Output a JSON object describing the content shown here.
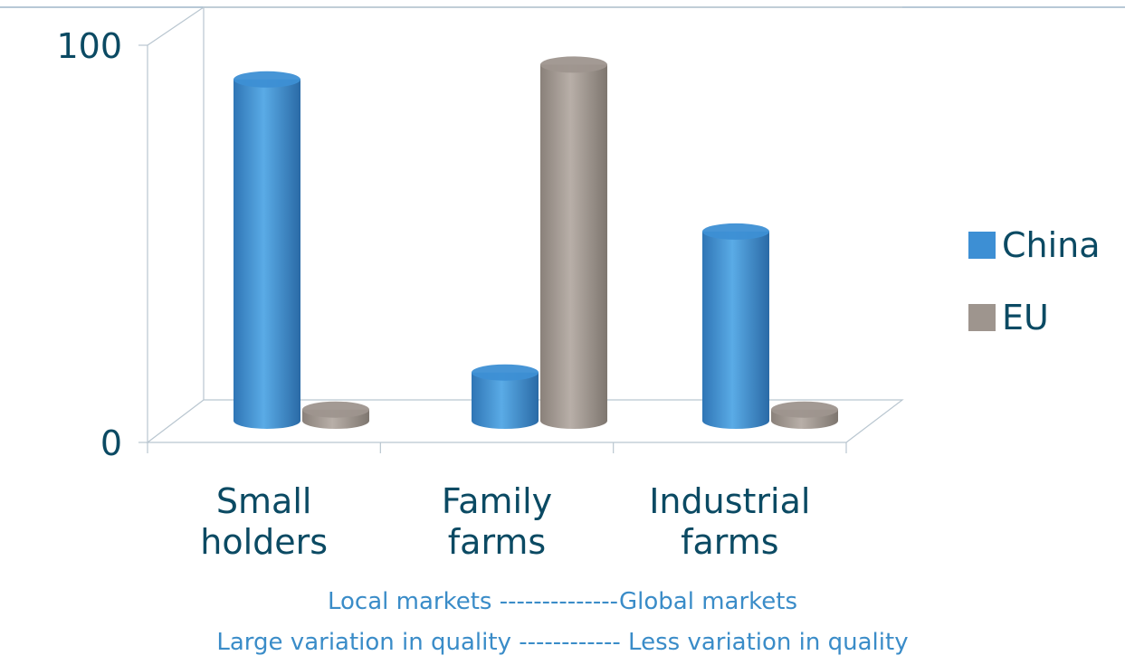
{
  "chart_data": {
    "type": "bar",
    "categories": [
      [
        "Small",
        "holders"
      ],
      [
        "Family",
        "farms"
      ],
      [
        "Industrial",
        "farms"
      ]
    ],
    "series": [
      {
        "name": "China",
        "values": [
          92,
          13,
          51
        ],
        "color": "#3d8fd4"
      },
      {
        "name": "EU",
        "values": [
          3,
          96,
          3
        ],
        "color": "#9e958e"
      }
    ],
    "ylim": [
      0,
      100
    ],
    "y_ticks": [
      "0",
      "100"
    ],
    "legend_position": "right",
    "grid": false
  },
  "captions": {
    "line1": "Local markets --------------Global markets",
    "line2": "Large variation in quality ------------ Less variation in quality"
  }
}
